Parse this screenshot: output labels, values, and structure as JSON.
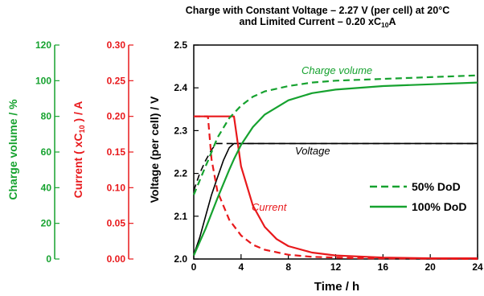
{
  "chart_data": {
    "type": "line",
    "title": "Charge with Constant Voltage – 2.27 V (per cell) at 20°C",
    "title_line2_prefix": "and Limited Current – 0.20 xC",
    "title_line2_sub": "10",
    "title_line2_suffix": "A",
    "xlabel": "Time / h",
    "xlim": [
      0,
      24
    ],
    "x_ticks": [
      0,
      4,
      8,
      12,
      16,
      20,
      24
    ],
    "axes": {
      "voltage": {
        "label": "Voltage (per cell) / V",
        "ylim": [
          2.0,
          2.5
        ],
        "ticks": [
          "2.0",
          "2.1",
          "2.2",
          "2.3",
          "2.4",
          "2.5"
        ]
      },
      "current": {
        "label_prefix": "Current ( xC",
        "label_sub": "10",
        "label_suffix": " ) / A",
        "ylim": [
          0,
          0.3
        ],
        "ticks": [
          "0.00",
          "0.05",
          "0.10",
          "0.15",
          "0.20",
          "0.25",
          "0.30"
        ]
      },
      "charge": {
        "label": "Charge volume / %",
        "ylim": [
          0,
          120
        ],
        "ticks": [
          "0",
          "20",
          "40",
          "60",
          "80",
          "100",
          "120"
        ]
      }
    },
    "annotations": {
      "charge": "Charge volume",
      "voltage": "Voltage",
      "current": "Current"
    },
    "legend": {
      "position": "lower-right",
      "items": [
        {
          "label": "50% DoD",
          "style": "dashed"
        },
        {
          "label": "100% DoD",
          "style": "solid"
        }
      ]
    },
    "grid": false,
    "series": [
      {
        "name": "Voltage",
        "quantity": "voltage",
        "dod": "100% DoD",
        "color": "#000000",
        "x": [
          0,
          0.5,
          1,
          1.5,
          2,
          2.5,
          3,
          3.4,
          24
        ],
        "y": [
          2.01,
          2.05,
          2.1,
          2.15,
          2.19,
          2.23,
          2.26,
          2.27,
          2.27
        ]
      },
      {
        "name": "Voltage",
        "quantity": "voltage",
        "dod": "50% DoD",
        "color": "#000000",
        "x": [
          0,
          0.5,
          1,
          1.5,
          1.9,
          24
        ],
        "y": [
          2.16,
          2.2,
          2.23,
          2.255,
          2.27,
          2.27
        ]
      },
      {
        "name": "Current",
        "quantity": "current",
        "dod": "100% DoD",
        "color": "#e8191c",
        "x": [
          0,
          3.4,
          4,
          5,
          6,
          7,
          8,
          10,
          12,
          16,
          20,
          24
        ],
        "y": [
          0.2,
          0.2,
          0.13,
          0.075,
          0.045,
          0.028,
          0.018,
          0.009,
          0.005,
          0.002,
          0.001,
          0.001
        ]
      },
      {
        "name": "Current",
        "quantity": "current",
        "dod": "50% DoD",
        "color": "#e8191c",
        "x": [
          0,
          1.2,
          1.5,
          2,
          3,
          4,
          5,
          6,
          8,
          10,
          14,
          24
        ],
        "y": [
          0.2,
          0.2,
          0.14,
          0.095,
          0.055,
          0.033,
          0.02,
          0.013,
          0.006,
          0.003,
          0.001,
          0.0
        ]
      },
      {
        "name": "Charge volume",
        "quantity": "charge",
        "dod": "100% DoD",
        "color": "#16a22f",
        "x": [
          0,
          1,
          2,
          3,
          3.4,
          4,
          5,
          6,
          8,
          10,
          12,
          16,
          20,
          24
        ],
        "y": [
          2,
          17,
          34,
          50,
          56,
          64,
          74,
          81,
          89,
          93,
          95,
          97,
          98,
          99
        ]
      },
      {
        "name": "Charge volume",
        "quantity": "charge",
        "dod": "50% DoD",
        "color": "#16a22f",
        "x": [
          0,
          1,
          1.2,
          2,
          3,
          4,
          5,
          6,
          8,
          10,
          12,
          16,
          20,
          24
        ],
        "y": [
          36,
          52,
          55,
          68,
          79,
          86,
          91,
          94,
          97,
          99,
          100,
          101,
          102,
          103
        ]
      }
    ]
  }
}
